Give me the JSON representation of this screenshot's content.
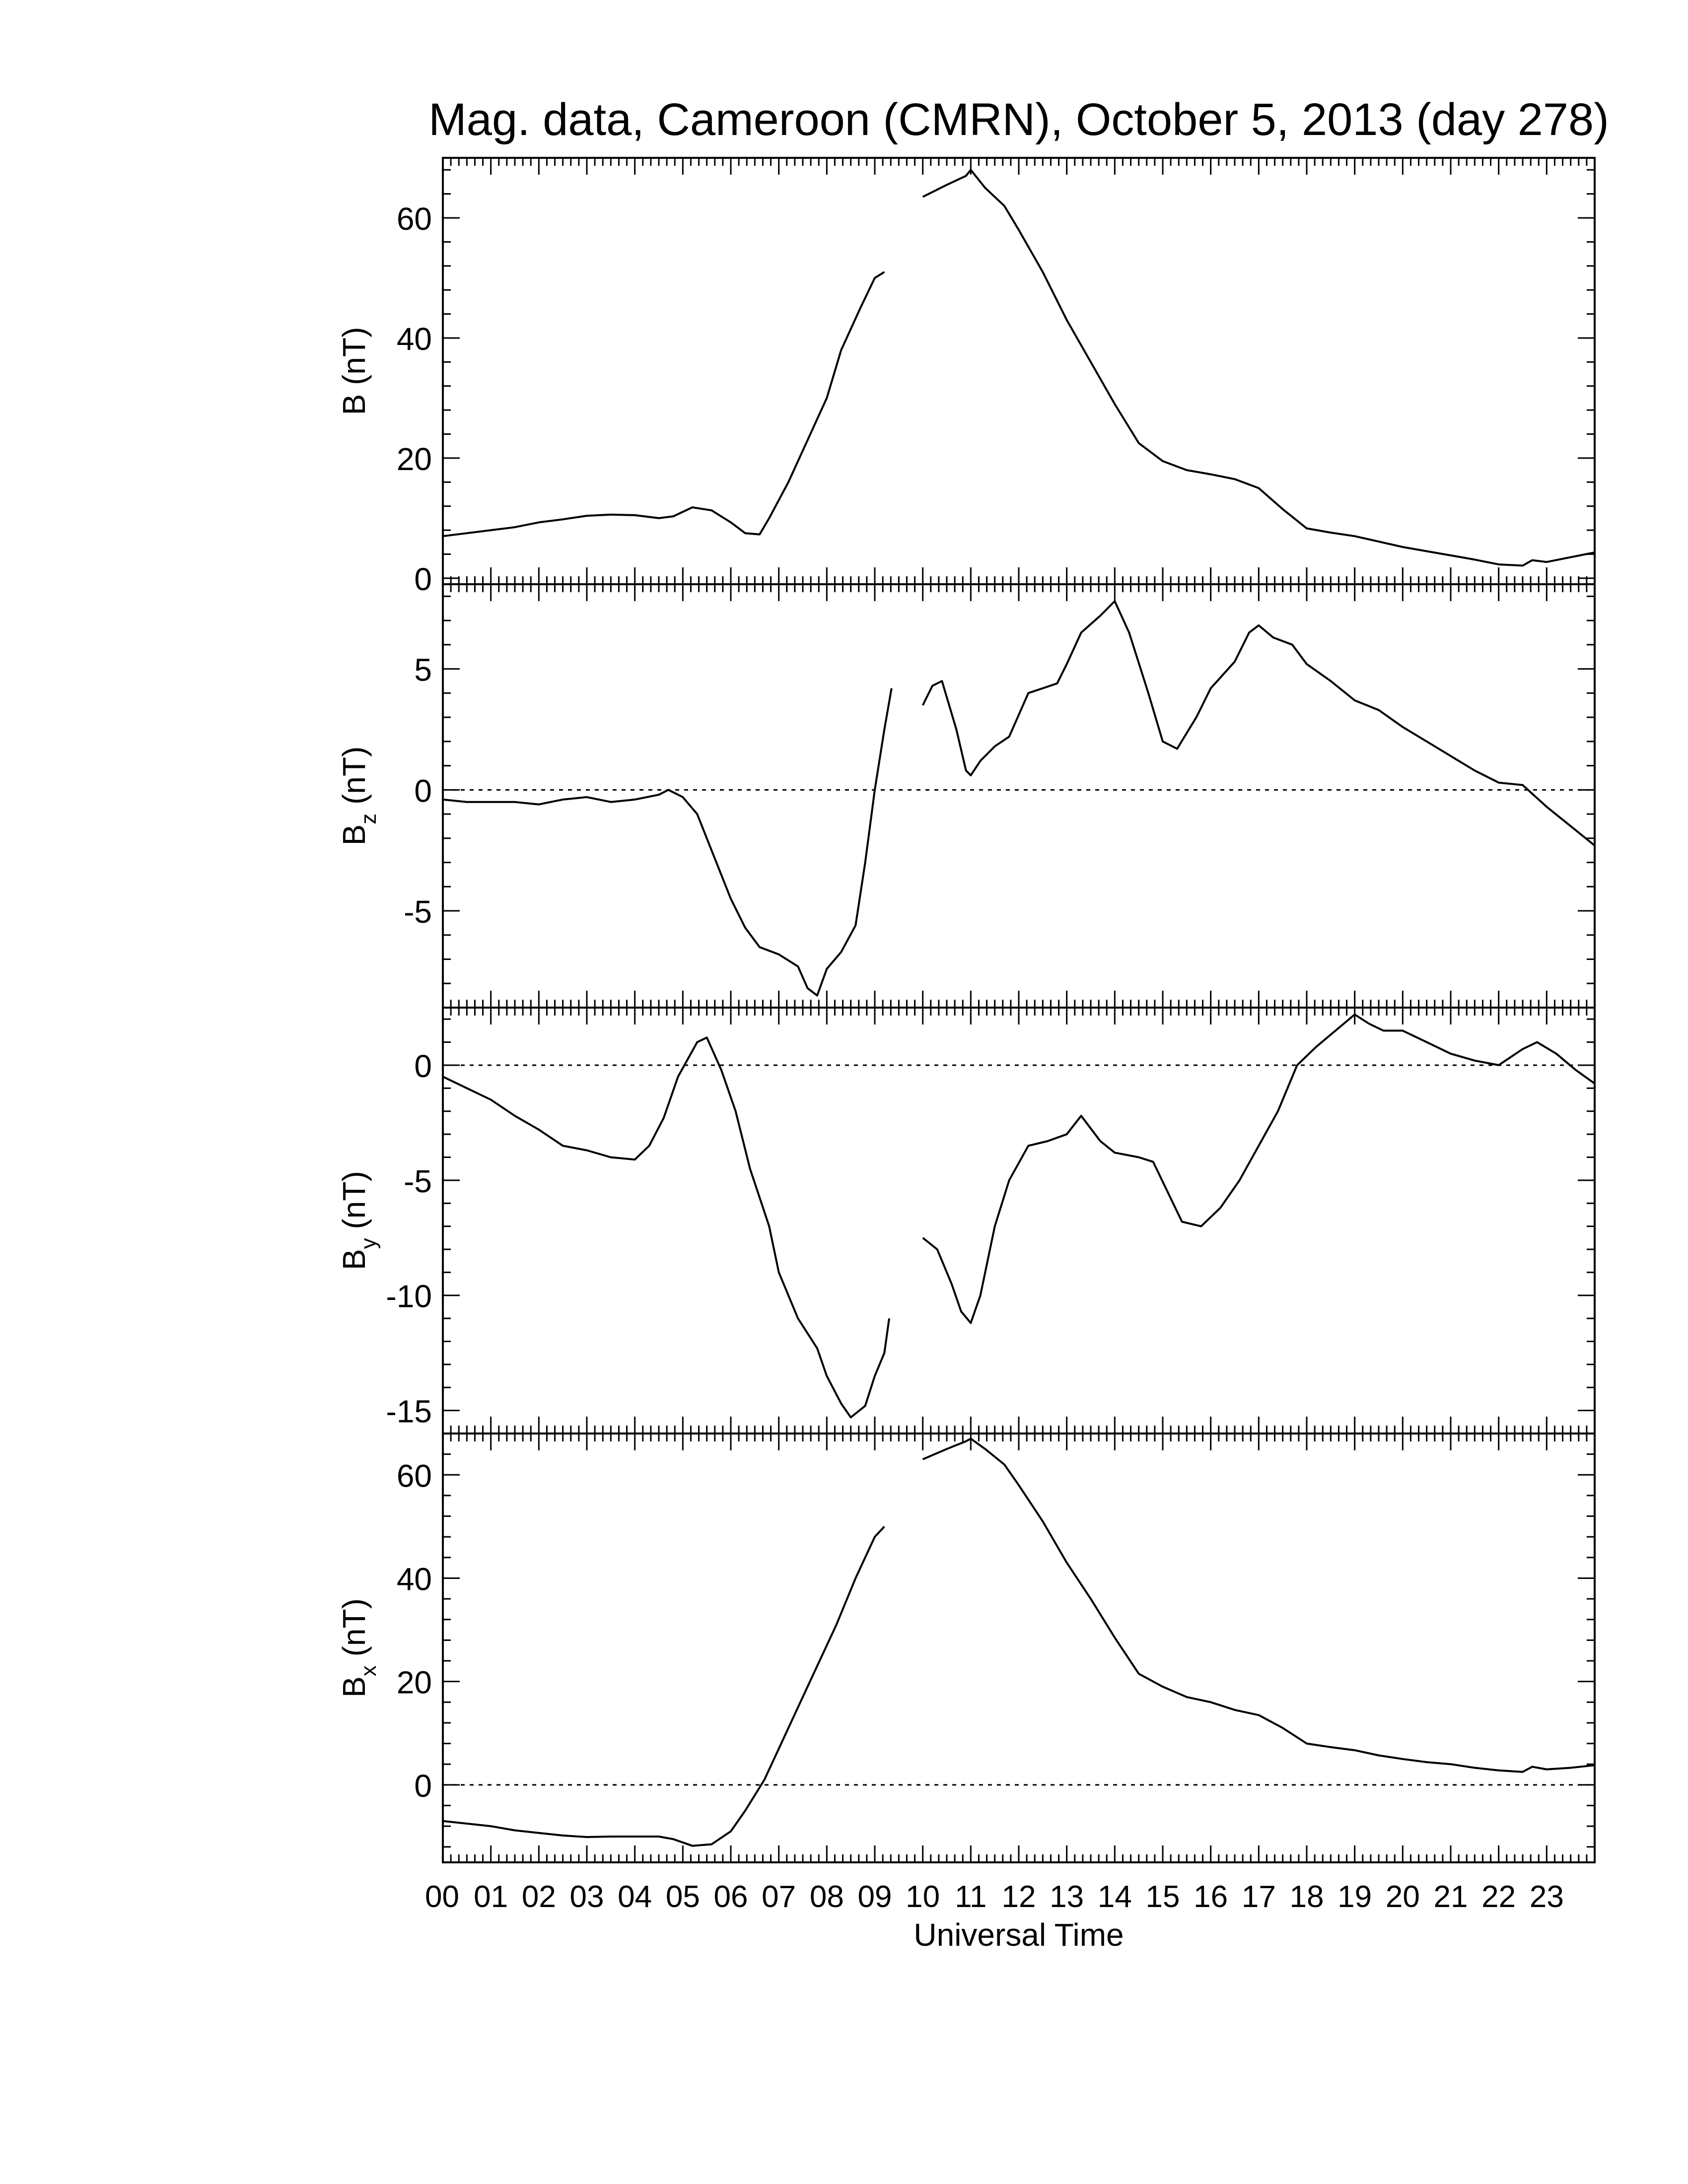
{
  "title": "Mag. data, Cameroon (CMRN), October 5, 2013 (day 278)",
  "xlabel": "Universal Time",
  "x_tick_labels": [
    "00",
    "01",
    "02",
    "03",
    "04",
    "05",
    "06",
    "07",
    "08",
    "09",
    "10",
    "11",
    "12",
    "13",
    "14",
    "15",
    "16",
    "17",
    "18",
    "19",
    "20",
    "21",
    "22",
    "23"
  ],
  "chart_data": [
    {
      "type": "line",
      "panel": "B",
      "ylabel": "B (nT)",
      "ylabel_main": "B",
      "ylabel_sub": "",
      "ylabel_unit": "(nT)",
      "xlim": [
        0,
        24
      ],
      "ylim": [
        -1,
        70
      ],
      "yticks": [
        0,
        20,
        40,
        60
      ],
      "ytick_labels": [
        "0",
        "20",
        "40",
        "60"
      ],
      "zero_line": false,
      "segments": [
        [
          [
            0,
            7
          ],
          [
            0.5,
            7.5
          ],
          [
            1,
            8
          ],
          [
            1.5,
            8.5
          ],
          [
            2,
            9.3
          ],
          [
            2.5,
            9.8
          ],
          [
            3,
            10.4
          ],
          [
            3.5,
            10.6
          ],
          [
            4,
            10.5
          ],
          [
            4.5,
            10
          ],
          [
            4.8,
            10.3
          ],
          [
            5.2,
            11.8
          ],
          [
            5.6,
            11.3
          ],
          [
            6,
            9.3
          ],
          [
            6.3,
            7.5
          ],
          [
            6.6,
            7.3
          ],
          [
            6.8,
            10
          ],
          [
            7.2,
            16
          ],
          [
            7.6,
            23
          ],
          [
            8,
            30
          ],
          [
            8.3,
            38
          ],
          [
            8.7,
            45
          ],
          [
            9,
            50
          ],
          [
            9.2,
            51
          ]
        ],
        [
          [
            10,
            63.5
          ],
          [
            10.5,
            65.5
          ],
          [
            10.9,
            67
          ],
          [
            11,
            68
          ],
          [
            11.3,
            65
          ],
          [
            11.7,
            62
          ],
          [
            12,
            58
          ],
          [
            12.5,
            51
          ],
          [
            13,
            43
          ],
          [
            13.5,
            36
          ],
          [
            14,
            29
          ],
          [
            14.5,
            22.5
          ],
          [
            15,
            19.5
          ],
          [
            15.5,
            18
          ],
          [
            16,
            17.3
          ],
          [
            16.5,
            16.5
          ],
          [
            17,
            15
          ],
          [
            17.5,
            11.5
          ],
          [
            18,
            8.3
          ],
          [
            18.5,
            7.6
          ],
          [
            19,
            7
          ],
          [
            19.5,
            6.1
          ],
          [
            20,
            5.2
          ],
          [
            20.5,
            4.5
          ],
          [
            21,
            3.8
          ],
          [
            21.5,
            3.1
          ],
          [
            22,
            2.3
          ],
          [
            22.5,
            2.1
          ],
          [
            22.7,
            3
          ],
          [
            23,
            2.7
          ],
          [
            23.5,
            3.5
          ],
          [
            24,
            4.3
          ]
        ]
      ]
    },
    {
      "type": "line",
      "panel": "Bz",
      "ylabel": "Bz (nT)",
      "ylabel_main": "B",
      "ylabel_sub": "z",
      "ylabel_unit": "(nT)",
      "xlim": [
        0,
        24
      ],
      "ylim": [
        -9,
        8.5
      ],
      "yticks": [
        -5,
        0,
        5
      ],
      "ytick_labels": [
        "-5",
        "0",
        "5"
      ],
      "zero_line": true,
      "segments": [
        [
          [
            0,
            -0.4
          ],
          [
            0.5,
            -0.5
          ],
          [
            1,
            -0.5
          ],
          [
            1.5,
            -0.5
          ],
          [
            2,
            -0.6
          ],
          [
            2.5,
            -0.4
          ],
          [
            3,
            -0.3
          ],
          [
            3.5,
            -0.5
          ],
          [
            4,
            -0.4
          ],
          [
            4.5,
            -0.2
          ],
          [
            4.7,
            0
          ],
          [
            5,
            -0.3
          ],
          [
            5.3,
            -1
          ],
          [
            5.6,
            -2.5
          ],
          [
            6,
            -4.5
          ],
          [
            6.3,
            -5.7
          ],
          [
            6.6,
            -6.5
          ],
          [
            7,
            -6.8
          ],
          [
            7.4,
            -7.3
          ],
          [
            7.6,
            -8.2
          ],
          [
            7.8,
            -8.5
          ],
          [
            8,
            -7.4
          ],
          [
            8.3,
            -6.7
          ],
          [
            8.6,
            -5.6
          ],
          [
            8.8,
            -3
          ],
          [
            9,
            0
          ],
          [
            9.2,
            2.5
          ],
          [
            9.35,
            4.2
          ]
        ],
        [
          [
            10,
            3.5
          ],
          [
            10.2,
            4.3
          ],
          [
            10.4,
            4.5
          ],
          [
            10.7,
            2.5
          ],
          [
            10.9,
            0.8
          ],
          [
            11,
            0.6
          ],
          [
            11.2,
            1.2
          ],
          [
            11.5,
            1.8
          ],
          [
            11.8,
            2.2
          ],
          [
            12.2,
            4
          ],
          [
            12.5,
            4.2
          ],
          [
            12.8,
            4.4
          ],
          [
            13,
            5.2
          ],
          [
            13.3,
            6.5
          ],
          [
            13.7,
            7.2
          ],
          [
            14,
            7.8
          ],
          [
            14.3,
            6.5
          ],
          [
            14.7,
            4
          ],
          [
            15,
            2
          ],
          [
            15.3,
            1.7
          ],
          [
            15.7,
            3
          ],
          [
            16,
            4.2
          ],
          [
            16.5,
            5.3
          ],
          [
            16.8,
            6.5
          ],
          [
            17,
            6.8
          ],
          [
            17.3,
            6.3
          ],
          [
            17.7,
            6
          ],
          [
            18,
            5.2
          ],
          [
            18.5,
            4.5
          ],
          [
            19,
            3.7
          ],
          [
            19.5,
            3.3
          ],
          [
            20,
            2.6
          ],
          [
            20.5,
            2
          ],
          [
            21,
            1.4
          ],
          [
            21.5,
            0.8
          ],
          [
            22,
            0.3
          ],
          [
            22.5,
            0.2
          ],
          [
            23,
            -0.7
          ],
          [
            23.5,
            -1.5
          ],
          [
            24,
            -2.3
          ]
        ]
      ]
    },
    {
      "type": "line",
      "panel": "By",
      "ylabel": "By (nT)",
      "ylabel_main": "B",
      "ylabel_sub": "y",
      "ylabel_unit": "(nT)",
      "xlim": [
        0,
        24
      ],
      "ylim": [
        -16,
        2.5
      ],
      "yticks": [
        -15,
        -10,
        -5,
        0
      ],
      "ytick_labels": [
        "-15",
        "-10",
        "-5",
        "0"
      ],
      "zero_line": true,
      "segments": [
        [
          [
            0,
            -0.5
          ],
          [
            0.5,
            -1
          ],
          [
            1,
            -1.5
          ],
          [
            1.5,
            -2.2
          ],
          [
            2,
            -2.8
          ],
          [
            2.5,
            -3.5
          ],
          [
            3,
            -3.7
          ],
          [
            3.5,
            -4
          ],
          [
            4,
            -4.1
          ],
          [
            4.3,
            -3.5
          ],
          [
            4.6,
            -2.3
          ],
          [
            4.9,
            -0.5
          ],
          [
            5.3,
            1
          ],
          [
            5.5,
            1.2
          ],
          [
            5.8,
            -0.2
          ],
          [
            6.1,
            -2
          ],
          [
            6.4,
            -4.5
          ],
          [
            6.8,
            -7
          ],
          [
            7,
            -9
          ],
          [
            7.4,
            -11
          ],
          [
            7.8,
            -12.3
          ],
          [
            8,
            -13.5
          ],
          [
            8.3,
            -14.7
          ],
          [
            8.5,
            -15.3
          ],
          [
            8.8,
            -14.8
          ],
          [
            9,
            -13.5
          ],
          [
            9.2,
            -12.5
          ],
          [
            9.3,
            -11
          ]
        ],
        [
          [
            10,
            -7.5
          ],
          [
            10.3,
            -8
          ],
          [
            10.6,
            -9.5
          ],
          [
            10.8,
            -10.7
          ],
          [
            11,
            -11.2
          ],
          [
            11.2,
            -10
          ],
          [
            11.5,
            -7
          ],
          [
            11.8,
            -5
          ],
          [
            12.2,
            -3.5
          ],
          [
            12.6,
            -3.3
          ],
          [
            13,
            -3
          ],
          [
            13.3,
            -2.2
          ],
          [
            13.7,
            -3.3
          ],
          [
            14,
            -3.8
          ],
          [
            14.5,
            -4
          ],
          [
            14.8,
            -4.2
          ],
          [
            15.1,
            -5.5
          ],
          [
            15.4,
            -6.8
          ],
          [
            15.8,
            -7
          ],
          [
            16.2,
            -6.2
          ],
          [
            16.6,
            -5
          ],
          [
            17,
            -3.5
          ],
          [
            17.4,
            -2
          ],
          [
            17.8,
            0
          ],
          [
            18.2,
            0.8
          ],
          [
            18.6,
            1.5
          ],
          [
            19,
            2.2
          ],
          [
            19.3,
            1.8
          ],
          [
            19.6,
            1.5
          ],
          [
            20,
            1.5
          ],
          [
            20.5,
            1
          ],
          [
            21,
            0.5
          ],
          [
            21.5,
            0.2
          ],
          [
            22,
            0
          ],
          [
            22.5,
            0.7
          ],
          [
            22.8,
            1
          ],
          [
            23.2,
            0.5
          ],
          [
            23.6,
            -0.2
          ],
          [
            24,
            -0.8
          ]
        ]
      ]
    },
    {
      "type": "line",
      "panel": "Bx",
      "ylabel": "Bx (nT)",
      "ylabel_main": "B",
      "ylabel_sub": "x",
      "ylabel_unit": "(nT)",
      "xlim": [
        0,
        24
      ],
      "ylim": [
        -15,
        68
      ],
      "yticks": [
        0,
        20,
        40,
        60
      ],
      "ytick_labels": [
        "0",
        "20",
        "40",
        "60"
      ],
      "zero_line": true,
      "segments": [
        [
          [
            0,
            -7
          ],
          [
            0.5,
            -7.5
          ],
          [
            1,
            -8
          ],
          [
            1.5,
            -8.8
          ],
          [
            2,
            -9.3
          ],
          [
            2.5,
            -9.8
          ],
          [
            3,
            -10.1
          ],
          [
            3.5,
            -10
          ],
          [
            4,
            -10
          ],
          [
            4.5,
            -10
          ],
          [
            4.8,
            -10.5
          ],
          [
            5.2,
            -11.8
          ],
          [
            5.6,
            -11.5
          ],
          [
            6,
            -9
          ],
          [
            6.3,
            -5
          ],
          [
            6.7,
            1
          ],
          [
            7,
            7
          ],
          [
            7.4,
            15
          ],
          [
            7.8,
            23
          ],
          [
            8.2,
            31
          ],
          [
            8.6,
            40
          ],
          [
            9,
            48
          ],
          [
            9.2,
            50
          ]
        ],
        [
          [
            10,
            63
          ],
          [
            10.5,
            65
          ],
          [
            10.9,
            66.5
          ],
          [
            11,
            67
          ],
          [
            11.3,
            65
          ],
          [
            11.7,
            62
          ],
          [
            12,
            58
          ],
          [
            12.5,
            51
          ],
          [
            13,
            43
          ],
          [
            13.5,
            36
          ],
          [
            14,
            28.5
          ],
          [
            14.5,
            21.5
          ],
          [
            15,
            19
          ],
          [
            15.5,
            17
          ],
          [
            16,
            16
          ],
          [
            16.5,
            14.5
          ],
          [
            17,
            13.5
          ],
          [
            17.5,
            11
          ],
          [
            18,
            8
          ],
          [
            18.5,
            7.3
          ],
          [
            19,
            6.7
          ],
          [
            19.5,
            5.7
          ],
          [
            20,
            5
          ],
          [
            20.5,
            4.4
          ],
          [
            21,
            4
          ],
          [
            21.5,
            3.3
          ],
          [
            22,
            2.8
          ],
          [
            22.5,
            2.5
          ],
          [
            22.7,
            3.5
          ],
          [
            23,
            3
          ],
          [
            23.5,
            3.3
          ],
          [
            24,
            3.8
          ]
        ]
      ]
    }
  ]
}
